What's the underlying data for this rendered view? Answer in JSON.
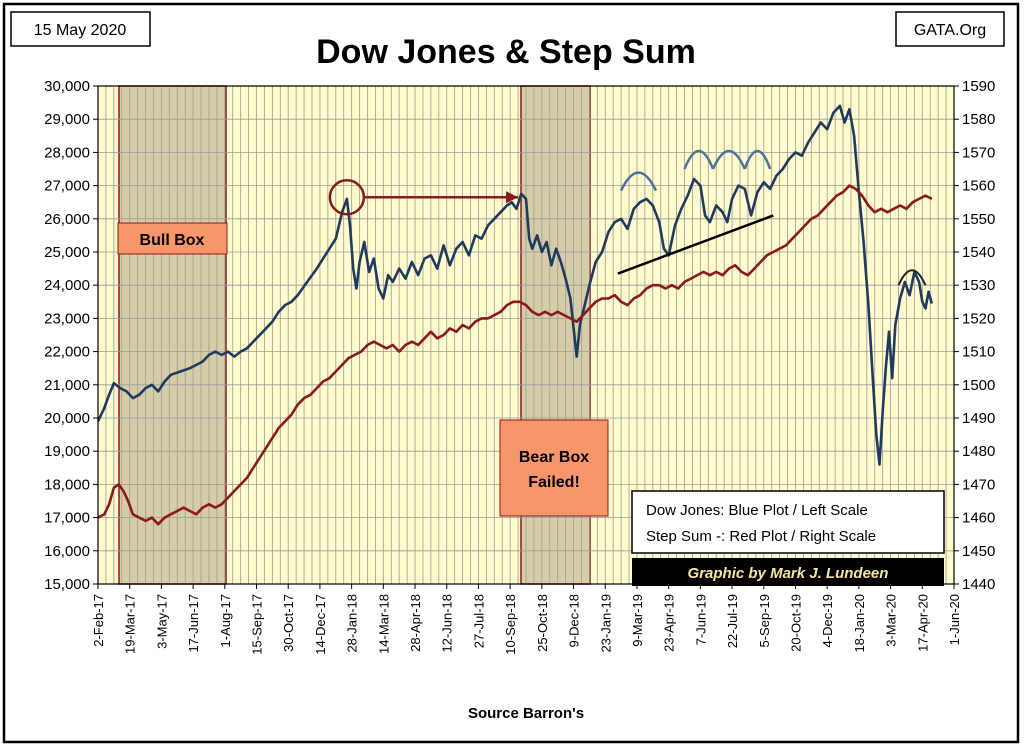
{
  "header": {
    "date": "15 May 2020",
    "title": "Dow Jones & Step Sum",
    "site": "GATA.Org"
  },
  "footer": {
    "source": "Source Barron's"
  },
  "legend": {
    "line1": "Dow Jones: Blue Plot / Left Scale",
    "line2": "Step Sum -: Red Plot / Right Scale",
    "credit": "Graphic by Mark J. Lundeen",
    "placement": "bottom-right"
  },
  "annotations": {
    "bull_box": "Bull Box",
    "bear_box_line1": "Bear Box",
    "bear_box_line2": "Failed!"
  },
  "colors": {
    "plot_bg": "#fffbcc",
    "grid": "#9c9c9c",
    "dow": "#1f3a5f",
    "step_sum": "#8b1a1a",
    "box_fill": "#cfc3a0",
    "box_border": "#8b1a1a",
    "label_fill": "#f7956b",
    "arc": "#4a7498",
    "credit_bg": "#000000",
    "credit_text": "#f3e7a0"
  },
  "chart_data": {
    "type": "line",
    "title": "Dow Jones & Step Sum",
    "xlabel": "Source Barron's",
    "grid": true,
    "x_ticks": [
      "2-Feb-17",
      "19-Mar-17",
      "3-May-17",
      "17-Jun-17",
      "1-Aug-17",
      "15-Sep-17",
      "30-Oct-17",
      "14-Dec-17",
      "28-Jan-18",
      "14-Mar-18",
      "28-Apr-18",
      "12-Jun-18",
      "27-Jul-18",
      "10-Sep-18",
      "25-Oct-18",
      "9-Dec-18",
      "23-Jan-19",
      "9-Mar-19",
      "23-Apr-19",
      "7-Jun-19",
      "22-Jul-19",
      "5-Sep-19",
      "20-Oct-19",
      "4-Dec-19",
      "18-Jan-20",
      "3-Mar-20",
      "17-Apr-20",
      "1-Jun-20"
    ],
    "y_left": {
      "ylim": [
        15000,
        30000
      ],
      "ticks": [
        "15,000",
        "16,000",
        "17,000",
        "18,000",
        "19,000",
        "20,000",
        "21,000",
        "22,000",
        "23,000",
        "24,000",
        "25,000",
        "26,000",
        "27,000",
        "28,000",
        "29,000",
        "30,000"
      ]
    },
    "y_right": {
      "ylim": [
        1440,
        1590
      ],
      "ticks": [
        "1440",
        "1450",
        "1460",
        "1470",
        "1480",
        "1490",
        "1500",
        "1510",
        "1520",
        "1530",
        "1540",
        "1550",
        "1560",
        "1570",
        "1580",
        "1590"
      ]
    },
    "series": [
      {
        "name": "Dow Jones",
        "axis": "left",
        "points": [
          [
            0,
            19900
          ],
          [
            0.2,
            20300
          ],
          [
            0.35,
            20700
          ],
          [
            0.5,
            21050
          ],
          [
            0.7,
            20900
          ],
          [
            0.9,
            20800
          ],
          [
            1.1,
            20600
          ],
          [
            1.3,
            20700
          ],
          [
            1.5,
            20900
          ],
          [
            1.7,
            21000
          ],
          [
            1.9,
            20800
          ],
          [
            2.1,
            21100
          ],
          [
            2.3,
            21300
          ],
          [
            2.6,
            21400
          ],
          [
            2.9,
            21500
          ],
          [
            3.1,
            21600
          ],
          [
            3.3,
            21700
          ],
          [
            3.5,
            21900
          ],
          [
            3.7,
            22000
          ],
          [
            3.9,
            21900
          ],
          [
            4.1,
            22000
          ],
          [
            4.3,
            21850
          ],
          [
            4.5,
            22000
          ],
          [
            4.7,
            22100
          ],
          [
            4.9,
            22300
          ],
          [
            5.2,
            22600
          ],
          [
            5.5,
            22900
          ],
          [
            5.7,
            23200
          ],
          [
            5.9,
            23400
          ],
          [
            6.1,
            23500
          ],
          [
            6.3,
            23700
          ],
          [
            6.6,
            24100
          ],
          [
            6.9,
            24500
          ],
          [
            7.1,
            24800
          ],
          [
            7.3,
            25100
          ],
          [
            7.5,
            25400
          ],
          [
            7.7,
            26200
          ],
          [
            7.85,
            26600
          ],
          [
            7.95,
            25800
          ],
          [
            8.05,
            24500
          ],
          [
            8.15,
            23900
          ],
          [
            8.25,
            24700
          ],
          [
            8.4,
            25300
          ],
          [
            8.55,
            24400
          ],
          [
            8.7,
            24800
          ],
          [
            8.85,
            23900
          ],
          [
            9.0,
            23600
          ],
          [
            9.15,
            24300
          ],
          [
            9.3,
            24100
          ],
          [
            9.5,
            24500
          ],
          [
            9.7,
            24200
          ],
          [
            9.9,
            24700
          ],
          [
            10.1,
            24300
          ],
          [
            10.3,
            24800
          ],
          [
            10.5,
            24900
          ],
          [
            10.7,
            24500
          ],
          [
            10.9,
            25200
          ],
          [
            11.1,
            24600
          ],
          [
            11.3,
            25100
          ],
          [
            11.5,
            25300
          ],
          [
            11.7,
            24900
          ],
          [
            11.9,
            25500
          ],
          [
            12.1,
            25400
          ],
          [
            12.3,
            25800
          ],
          [
            12.5,
            26000
          ],
          [
            12.7,
            26200
          ],
          [
            12.9,
            26400
          ],
          [
            13.05,
            26500
          ],
          [
            13.2,
            26300
          ],
          [
            13.35,
            26750
          ],
          [
            13.5,
            26600
          ],
          [
            13.6,
            25400
          ],
          [
            13.7,
            25100
          ],
          [
            13.85,
            25500
          ],
          [
            14.0,
            25000
          ],
          [
            14.15,
            25300
          ],
          [
            14.3,
            24600
          ],
          [
            14.45,
            25100
          ],
          [
            14.6,
            24700
          ],
          [
            14.75,
            24200
          ],
          [
            14.9,
            23600
          ],
          [
            15.0,
            22700
          ],
          [
            15.1,
            21850
          ],
          [
            15.2,
            22800
          ],
          [
            15.35,
            23400
          ],
          [
            15.5,
            24000
          ],
          [
            15.7,
            24700
          ],
          [
            15.9,
            25000
          ],
          [
            16.1,
            25600
          ],
          [
            16.3,
            25900
          ],
          [
            16.5,
            26000
          ],
          [
            16.7,
            25700
          ],
          [
            16.9,
            26300
          ],
          [
            17.1,
            26500
          ],
          [
            17.3,
            26600
          ],
          [
            17.5,
            26400
          ],
          [
            17.7,
            25900
          ],
          [
            17.85,
            25100
          ],
          [
            18.0,
            24900
          ],
          [
            18.2,
            25800
          ],
          [
            18.4,
            26300
          ],
          [
            18.6,
            26700
          ],
          [
            18.8,
            27200
          ],
          [
            19.0,
            27000
          ],
          [
            19.15,
            26100
          ],
          [
            19.3,
            25900
          ],
          [
            19.5,
            26400
          ],
          [
            19.7,
            26200
          ],
          [
            19.85,
            25900
          ],
          [
            20.0,
            26600
          ],
          [
            20.2,
            27000
          ],
          [
            20.4,
            26900
          ],
          [
            20.6,
            26100
          ],
          [
            20.8,
            26800
          ],
          [
            21.0,
            27100
          ],
          [
            21.2,
            26900
          ],
          [
            21.4,
            27300
          ],
          [
            21.6,
            27500
          ],
          [
            21.8,
            27800
          ],
          [
            22.0,
            28000
          ],
          [
            22.2,
            27900
          ],
          [
            22.4,
            28300
          ],
          [
            22.6,
            28600
          ],
          [
            22.8,
            28900
          ],
          [
            23.0,
            28700
          ],
          [
            23.2,
            29200
          ],
          [
            23.4,
            29400
          ],
          [
            23.55,
            28900
          ],
          [
            23.7,
            29300
          ],
          [
            23.85,
            28500
          ],
          [
            24.0,
            26800
          ],
          [
            24.15,
            25300
          ],
          [
            24.3,
            23400
          ],
          [
            24.45,
            21000
          ],
          [
            24.55,
            19500
          ],
          [
            24.65,
            18600
          ],
          [
            24.75,
            20200
          ],
          [
            24.85,
            21500
          ],
          [
            24.95,
            22600
          ],
          [
            25.05,
            21200
          ],
          [
            25.15,
            22800
          ],
          [
            25.3,
            23600
          ],
          [
            25.45,
            24100
          ],
          [
            25.6,
            23700
          ],
          [
            25.75,
            24400
          ],
          [
            25.9,
            24100
          ],
          [
            26.0,
            23500
          ],
          [
            26.1,
            23300
          ],
          [
            26.2,
            23800
          ],
          [
            26.3,
            23450
          ]
        ]
      },
      {
        "name": "Step Sum",
        "axis": "right",
        "points": [
          [
            0,
            1460
          ],
          [
            0.2,
            1461
          ],
          [
            0.35,
            1464
          ],
          [
            0.5,
            1469
          ],
          [
            0.65,
            1470
          ],
          [
            0.8,
            1468
          ],
          [
            0.95,
            1465
          ],
          [
            1.1,
            1461
          ],
          [
            1.3,
            1460
          ],
          [
            1.5,
            1459
          ],
          [
            1.7,
            1460
          ],
          [
            1.9,
            1458
          ],
          [
            2.1,
            1460
          ],
          [
            2.3,
            1461
          ],
          [
            2.5,
            1462
          ],
          [
            2.7,
            1463
          ],
          [
            2.9,
            1462
          ],
          [
            3.1,
            1461
          ],
          [
            3.3,
            1463
          ],
          [
            3.5,
            1464
          ],
          [
            3.7,
            1463
          ],
          [
            3.9,
            1464
          ],
          [
            4.1,
            1466
          ],
          [
            4.3,
            1468
          ],
          [
            4.5,
            1470
          ],
          [
            4.7,
            1472
          ],
          [
            4.9,
            1475
          ],
          [
            5.1,
            1478
          ],
          [
            5.3,
            1481
          ],
          [
            5.5,
            1484
          ],
          [
            5.7,
            1487
          ],
          [
            5.9,
            1489
          ],
          [
            6.1,
            1491
          ],
          [
            6.3,
            1494
          ],
          [
            6.5,
            1496
          ],
          [
            6.7,
            1497
          ],
          [
            6.9,
            1499
          ],
          [
            7.1,
            1501
          ],
          [
            7.3,
            1502
          ],
          [
            7.5,
            1504
          ],
          [
            7.7,
            1506
          ],
          [
            7.9,
            1508
          ],
          [
            8.1,
            1509
          ],
          [
            8.3,
            1510
          ],
          [
            8.5,
            1512
          ],
          [
            8.7,
            1513
          ],
          [
            8.9,
            1512
          ],
          [
            9.1,
            1511
          ],
          [
            9.3,
            1512
          ],
          [
            9.5,
            1510
          ],
          [
            9.7,
            1512
          ],
          [
            9.9,
            1513
          ],
          [
            10.1,
            1512
          ],
          [
            10.3,
            1514
          ],
          [
            10.5,
            1516
          ],
          [
            10.7,
            1514
          ],
          [
            10.9,
            1515
          ],
          [
            11.1,
            1517
          ],
          [
            11.3,
            1516
          ],
          [
            11.5,
            1518
          ],
          [
            11.7,
            1517
          ],
          [
            11.9,
            1519
          ],
          [
            12.1,
            1520
          ],
          [
            12.3,
            1520
          ],
          [
            12.5,
            1521
          ],
          [
            12.7,
            1522
          ],
          [
            12.9,
            1524
          ],
          [
            13.1,
            1525
          ],
          [
            13.3,
            1525
          ],
          [
            13.5,
            1524
          ],
          [
            13.7,
            1522
          ],
          [
            13.9,
            1521
          ],
          [
            14.1,
            1522
          ],
          [
            14.3,
            1521
          ],
          [
            14.5,
            1522
          ],
          [
            14.7,
            1521
          ],
          [
            14.9,
            1520
          ],
          [
            15.1,
            1519
          ],
          [
            15.3,
            1521
          ],
          [
            15.5,
            1523
          ],
          [
            15.7,
            1525
          ],
          [
            15.9,
            1526
          ],
          [
            16.1,
            1526
          ],
          [
            16.3,
            1527
          ],
          [
            16.5,
            1525
          ],
          [
            16.7,
            1524
          ],
          [
            16.9,
            1526
          ],
          [
            17.1,
            1527
          ],
          [
            17.3,
            1529
          ],
          [
            17.5,
            1530
          ],
          [
            17.7,
            1530
          ],
          [
            17.9,
            1529
          ],
          [
            18.1,
            1530
          ],
          [
            18.3,
            1529
          ],
          [
            18.5,
            1531
          ],
          [
            18.7,
            1532
          ],
          [
            18.9,
            1533
          ],
          [
            19.1,
            1534
          ],
          [
            19.3,
            1533
          ],
          [
            19.5,
            1534
          ],
          [
            19.7,
            1533
          ],
          [
            19.9,
            1535
          ],
          [
            20.1,
            1536
          ],
          [
            20.3,
            1534
          ],
          [
            20.5,
            1533
          ],
          [
            20.7,
            1535
          ],
          [
            20.9,
            1537
          ],
          [
            21.1,
            1539
          ],
          [
            21.3,
            1540
          ],
          [
            21.5,
            1541
          ],
          [
            21.7,
            1542
          ],
          [
            21.9,
            1544
          ],
          [
            22.1,
            1546
          ],
          [
            22.3,
            1548
          ],
          [
            22.5,
            1550
          ],
          [
            22.7,
            1551
          ],
          [
            22.9,
            1553
          ],
          [
            23.1,
            1555
          ],
          [
            23.3,
            1557
          ],
          [
            23.5,
            1558
          ],
          [
            23.7,
            1560
          ],
          [
            23.9,
            1559
          ],
          [
            24.1,
            1557
          ],
          [
            24.3,
            1554
          ],
          [
            24.5,
            1552
          ],
          [
            24.7,
            1553
          ],
          [
            24.9,
            1552
          ],
          [
            25.1,
            1553
          ],
          [
            25.3,
            1554
          ],
          [
            25.5,
            1553
          ],
          [
            25.7,
            1555
          ],
          [
            25.9,
            1556
          ],
          [
            26.1,
            1557
          ],
          [
            26.3,
            1556
          ]
        ]
      }
    ]
  }
}
